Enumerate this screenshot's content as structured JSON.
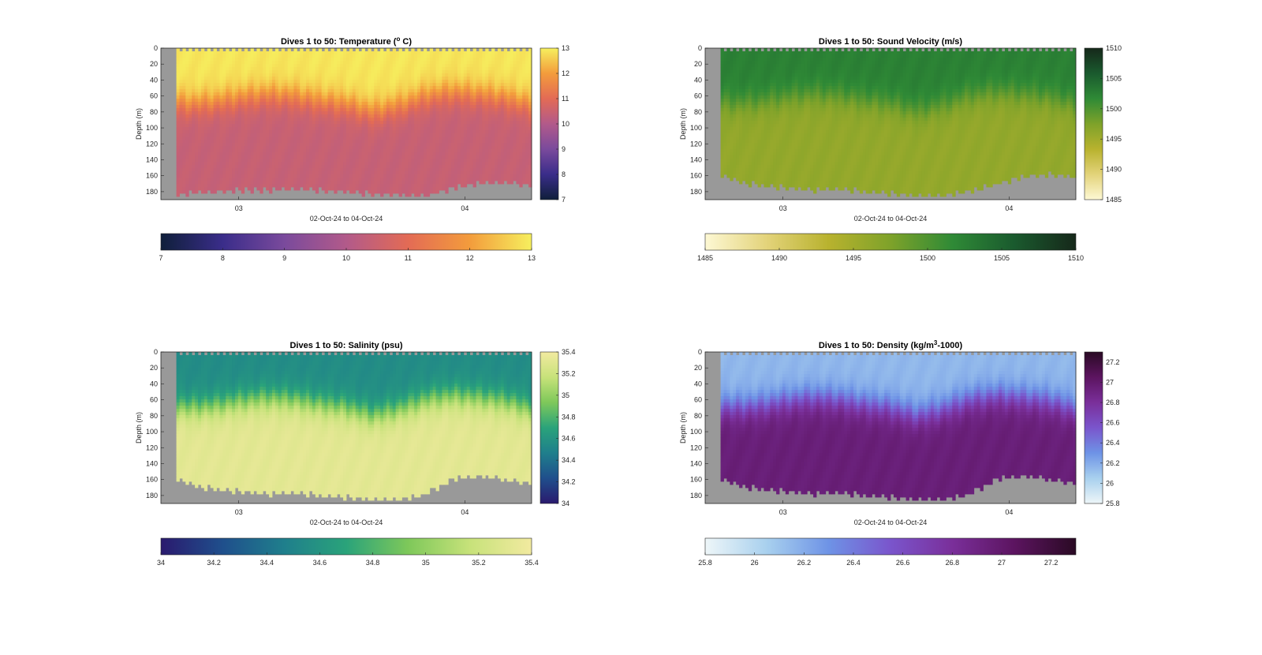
{
  "figure": {
    "window": "Dives 1 to 50 sections"
  },
  "chart_data": [
    {
      "type": "heatmap",
      "title_prefix": "Dives 1 to 50: Temperature (",
      "title_sup": "o",
      "title_suffix": " C)",
      "xlabel": "02-Oct-24 to 04-Oct-24",
      "ylabel": "Depth (m)",
      "xticks": [
        "03",
        "04"
      ],
      "yticks": [
        "0",
        "20",
        "40",
        "60",
        "80",
        "100",
        "120",
        "140",
        "160",
        "180"
      ],
      "ylim": [
        0,
        190
      ],
      "clim": [
        7,
        13
      ],
      "colorbar_ticks": [
        "7",
        "8",
        "9",
        "10",
        "11",
        "12",
        "13"
      ],
      "colormap": [
        "#0f1f3a",
        "#3a2d8a",
        "#7a4a9c",
        "#b25a8a",
        "#e36b55",
        "#f39c3c",
        "#f6ef5e"
      ],
      "profile": {
        "surface": 12.9,
        "thermocline_depth": [
          65,
          70,
          68,
          62,
          58,
          60,
          66,
          70,
          80,
          72,
          60,
          55,
          58,
          62,
          72
        ],
        "deep": 10.4
      },
      "bottom_depth_m": [
        185,
        182,
        180,
        178,
        178,
        176,
        178,
        180,
        183,
        184,
        185,
        176,
        170,
        168,
        172
      ],
      "missing_color": "#999999"
    },
    {
      "type": "heatmap",
      "title_prefix": "Dives 1 to 50: Sound Velocity (m/s)",
      "title_sup": "",
      "title_suffix": "",
      "xlabel": "02-Oct-24 to 04-Oct-24",
      "ylabel": "Depth (m)",
      "xticks": [
        "03",
        "04"
      ],
      "yticks": [
        "0",
        "20",
        "40",
        "60",
        "80",
        "100",
        "120",
        "140",
        "160",
        "180"
      ],
      "ylim": [
        0,
        190
      ],
      "clim": [
        1485,
        1510
      ],
      "colorbar_ticks": [
        "1485",
        "1490",
        "1495",
        "1500",
        "1505",
        "1510"
      ],
      "colormap": [
        "#fdf8d4",
        "#e3d37a",
        "#b8b22e",
        "#7ea22a",
        "#2f8a36",
        "#1a5a2e",
        "#16281a"
      ],
      "profile": {
        "surface": 1502.5,
        "thermocline_depth": [
          65,
          70,
          68,
          62,
          58,
          60,
          66,
          70,
          80,
          72,
          60,
          55,
          58,
          62,
          72
        ],
        "deep": 1496
      },
      "bottom_depth_m": [
        150,
        165,
        172,
        175,
        178,
        176,
        180,
        182,
        185,
        184,
        180,
        170,
        162,
        158,
        162
      ],
      "missing_color": "#999999"
    },
    {
      "type": "heatmap",
      "title_prefix": "Dives 1 to 50: Salinity (psu)",
      "title_sup": "",
      "title_suffix": "",
      "xlabel": "02-Oct-24 to 04-Oct-24",
      "ylabel": "Depth (m)",
      "xticks": [
        "03",
        "04"
      ],
      "yticks": [
        "0",
        "20",
        "40",
        "60",
        "80",
        "100",
        "120",
        "140",
        "160",
        "180"
      ],
      "ylim": [
        0,
        190
      ],
      "clim": [
        34,
        35.4
      ],
      "colorbar_ticks": [
        "34",
        "34.2",
        "34.4",
        "34.6",
        "34.8",
        "35",
        "35.2",
        "35.4"
      ],
      "colormap": [
        "#2a1a6e",
        "#1f4f8c",
        "#1f7f8c",
        "#2aa37a",
        "#7ec85a",
        "#c7e27a",
        "#f2eaa0"
      ],
      "profile": {
        "surface": 34.55,
        "thermocline_depth": [
          65,
          70,
          68,
          62,
          58,
          60,
          66,
          70,
          80,
          72,
          60,
          55,
          58,
          62,
          72
        ],
        "deep": 35.32
      },
      "bottom_depth_m": [
        150,
        165,
        172,
        175,
        178,
        176,
        180,
        182,
        185,
        184,
        178,
        160,
        155,
        160,
        165
      ],
      "missing_color": "#999999"
    },
    {
      "type": "heatmap",
      "title_prefix": "Dives 1 to 50: Density (kg/m",
      "title_sup": "3",
      "title_suffix": "-1000)",
      "xlabel": "02-Oct-24 to 04-Oct-24",
      "ylabel": "Depth (m)",
      "xticks": [
        "03",
        "04"
      ],
      "yticks": [
        "0",
        "20",
        "40",
        "60",
        "80",
        "100",
        "120",
        "140",
        "160",
        "180"
      ],
      "ylim": [
        0,
        190
      ],
      "clim": [
        25.8,
        27.3
      ],
      "colorbar_ticks": [
        "25.8",
        "26",
        "26.2",
        "26.4",
        "26.6",
        "26.8",
        "27",
        "27.2"
      ],
      "colormap": [
        "#eef6f8",
        "#a8d0ee",
        "#6e93e6",
        "#7a55cc",
        "#7a2f9a",
        "#5c1460",
        "#2a0a24"
      ],
      "profile": {
        "surface": 26.15,
        "thermocline_depth": [
          65,
          70,
          68,
          62,
          58,
          60,
          66,
          70,
          80,
          72,
          60,
          55,
          58,
          62,
          72
        ],
        "deep": 26.95
      },
      "bottom_depth_m": [
        150,
        165,
        172,
        175,
        178,
        176,
        180,
        182,
        185,
        184,
        178,
        160,
        155,
        160,
        165
      ],
      "missing_color": "#999999"
    }
  ]
}
